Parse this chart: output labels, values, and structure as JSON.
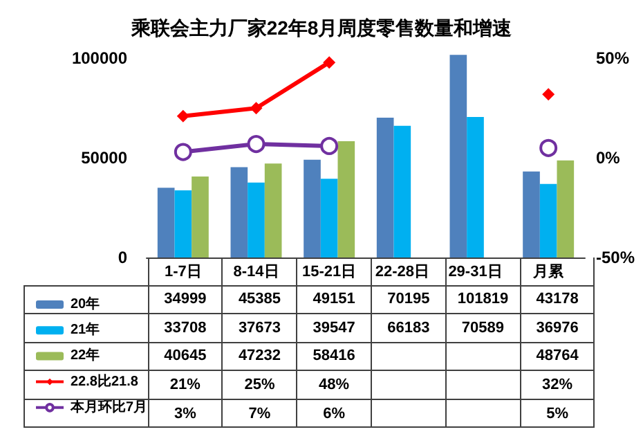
{
  "chart_data": {
    "type": "bar",
    "title": "乘联会主力厂家22年8月周度零售数量和增速",
    "categories": [
      "1-7日",
      "8-14日",
      "15-21日",
      "22-28日",
      "29-31日",
      "月累"
    ],
    "series": [
      {
        "name": "20年",
        "color": "#4f81bd",
        "values": [
          34999,
          45385,
          49151,
          70195,
          101819,
          43178
        ]
      },
      {
        "name": "21年",
        "color": "#00b0f0",
        "values": [
          33708,
          37673,
          39547,
          66183,
          70589,
          36976
        ]
      },
      {
        "name": "22年",
        "color": "#9bbb59",
        "values": [
          40645,
          47232,
          58416,
          null,
          null,
          48764
        ]
      },
      {
        "name": "22.8比21.8",
        "type": "line",
        "axis": "y2",
        "color": "#ff0000",
        "marker": "diamond",
        "values": [
          21,
          25,
          48,
          null,
          null,
          32
        ],
        "value_labels": [
          "21%",
          "25%",
          "48%",
          null,
          null,
          "32%"
        ]
      },
      {
        "name": "本月环比7月",
        "type": "line",
        "axis": "y2",
        "color": "#7030a0",
        "marker": "circle",
        "values": [
          3,
          7,
          6,
          null,
          null,
          5
        ],
        "value_labels": [
          "3%",
          "7%",
          "6%",
          null,
          null,
          "5%"
        ]
      }
    ],
    "ylim": [
      0,
      105000
    ],
    "yticks": [
      0,
      50000,
      100000
    ],
    "y2lim": [
      -50,
      55
    ],
    "y2ticks": [
      {
        "value": -50,
        "label": "-50%"
      },
      {
        "value": 0,
        "label": "0%"
      },
      {
        "value": 50,
        "label": "50%"
      }
    ],
    "data_labels": true,
    "legend": "bottom left",
    "grid": false
  }
}
